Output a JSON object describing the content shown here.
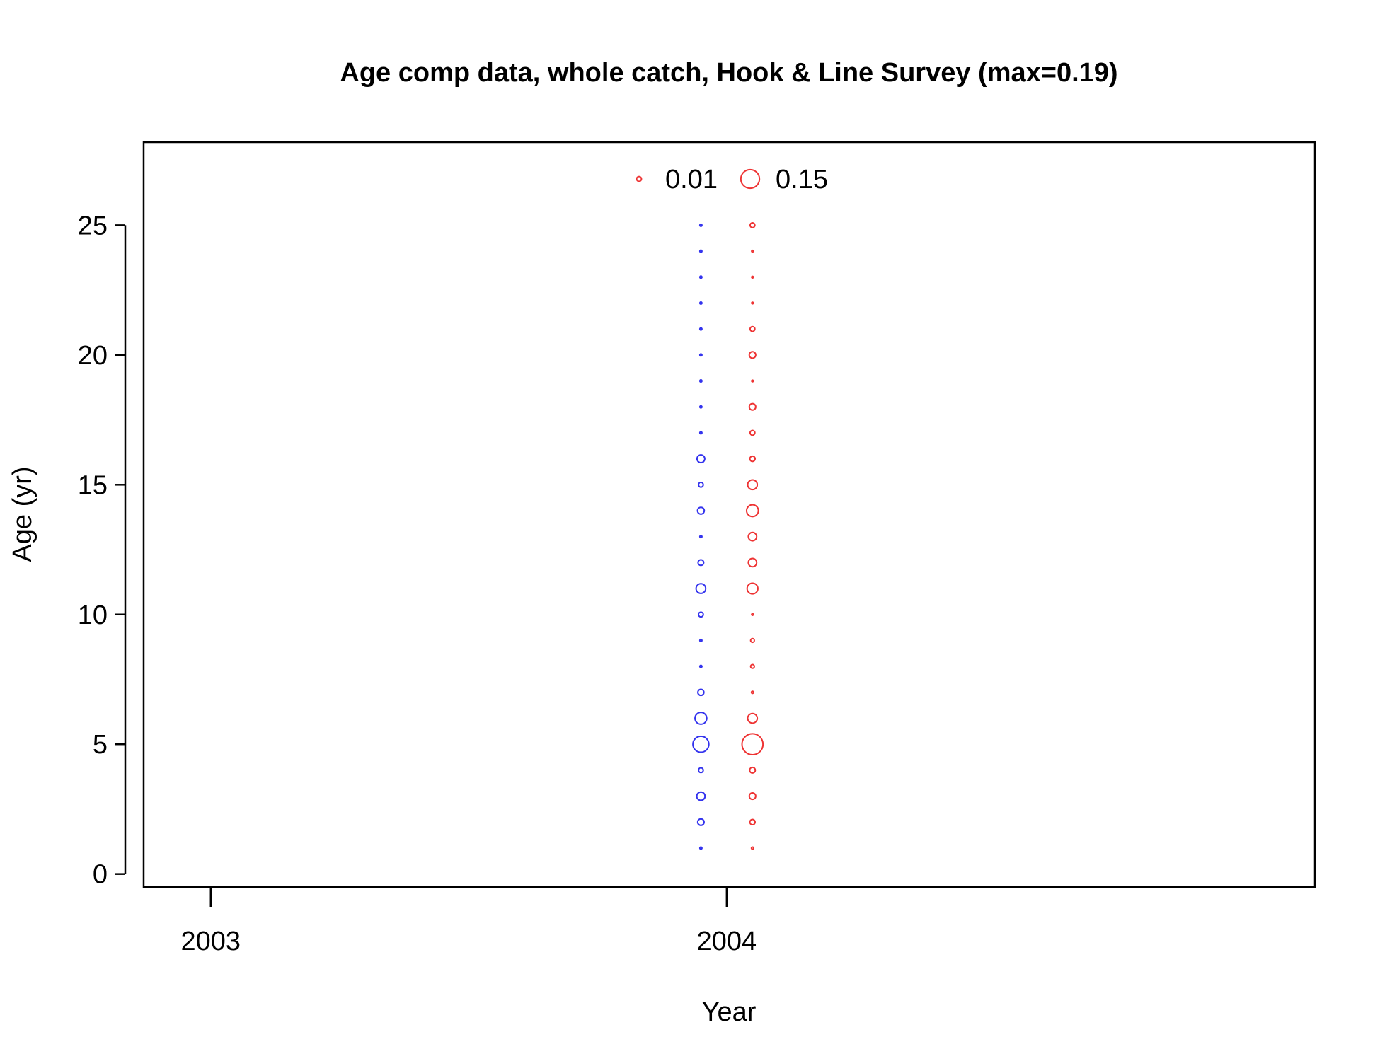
{
  "chart_data": {
    "type": "scatter",
    "title": "Age comp data, whole catch, Hook & Line Survey (max=0.19)",
    "xlabel": "Year",
    "ylabel": "Age (yr)",
    "xlim": [
      2002.87,
      2005.14
    ],
    "ylim": [
      -0.5,
      28.2
    ],
    "x_ticks": [
      2003,
      2004
    ],
    "x_tick_labels": [
      "2003",
      "2004"
    ],
    "y_ticks": [
      0,
      5,
      10,
      15,
      20,
      25
    ],
    "y_tick_labels": [
      "0",
      "5",
      "10",
      "15",
      "20",
      "25"
    ],
    "grid": false,
    "bubble_size_encoding": "sqrt(proportion)",
    "legend": {
      "placement": "top-center",
      "color": "#ee3333",
      "entries": [
        {
          "label": "0.01",
          "value": 0.01
        },
        {
          "label": "0.15",
          "value": 0.15
        }
      ]
    },
    "series": [
      {
        "color": "#3333ee",
        "x": 2003.95,
        "ages": [
          1,
          2,
          3,
          4,
          5,
          6,
          7,
          8,
          9,
          10,
          11,
          12,
          13,
          14,
          15,
          16,
          17,
          18,
          19,
          20,
          21,
          22,
          23,
          24,
          25
        ],
        "values": [
          0.002,
          0.018,
          0.03,
          0.01,
          0.11,
          0.06,
          0.016,
          0.002,
          0.002,
          0.01,
          0.04,
          0.014,
          0.002,
          0.02,
          0.01,
          0.026,
          0.002,
          0.002,
          0.002,
          0.002,
          0.002,
          0.002,
          0.002,
          0.002,
          0.002
        ]
      },
      {
        "color": "#ee3333",
        "x": 2004.05,
        "ages": [
          1,
          2,
          3,
          4,
          5,
          6,
          7,
          8,
          9,
          10,
          11,
          12,
          13,
          14,
          15,
          16,
          17,
          18,
          19,
          20,
          21,
          22,
          23,
          24,
          25
        ],
        "values": [
          0.002,
          0.012,
          0.018,
          0.014,
          0.19,
          0.04,
          0.002,
          0.006,
          0.006,
          0.001,
          0.05,
          0.03,
          0.03,
          0.06,
          0.04,
          0.012,
          0.01,
          0.018,
          0.001,
          0.018,
          0.01,
          0.001,
          0.001,
          0.001,
          0.01
        ]
      }
    ]
  }
}
